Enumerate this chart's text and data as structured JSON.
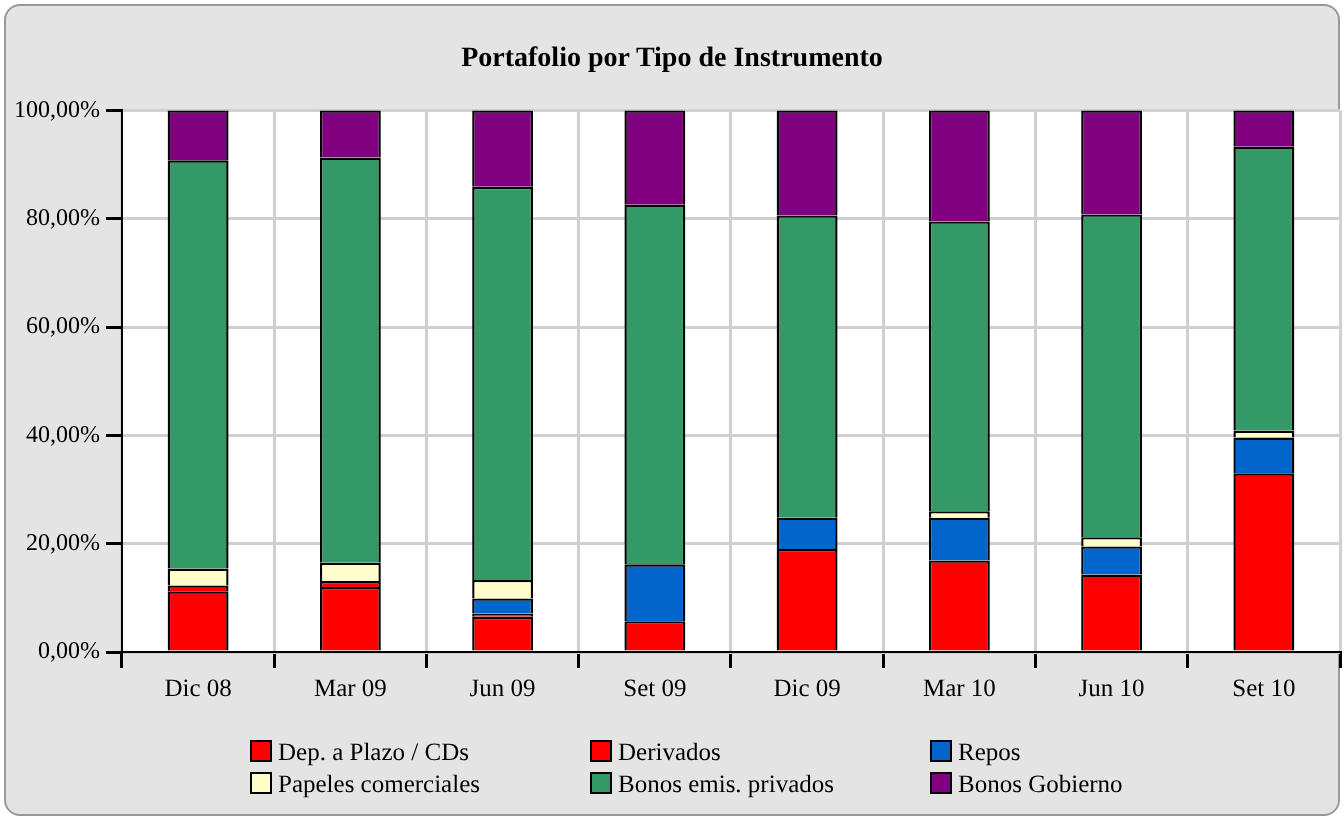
{
  "chart_data": {
    "type": "bar",
    "title": "Portafolio por Tipo de Instrumento",
    "stacked": true,
    "categories": [
      "Dic 08",
      "Mar 09",
      "Jun 09",
      "Set 09",
      "Dic 09",
      "Mar 10",
      "Jun 10",
      "Set 10"
    ],
    "series": [
      {
        "name": "Dep. a Plazo / CDs",
        "color": "#ff0000",
        "values": [
          11.2,
          12.0,
          6.5,
          5.7,
          19.0,
          16.9,
          14.3,
          33.0
        ]
      },
      {
        "name": "Derivados",
        "color": "#ff0000",
        "values": [
          1.1,
          1.1,
          0.6,
          0,
          0,
          0,
          0,
          0
        ]
      },
      {
        "name": "Repos",
        "color": "#0066cc",
        "values": [
          0,
          0,
          2.8,
          10.5,
          5.8,
          7.9,
          5.2,
          6.6
        ]
      },
      {
        "name": "Papeles comerciales",
        "color": "#ffffcc",
        "values": [
          3.1,
          3.4,
          3.4,
          0,
          0,
          1.2,
          1.7,
          1.3
        ]
      },
      {
        "name": "Bonos emis. privados",
        "color": "#339966",
        "values": [
          75.4,
          74.8,
          72.6,
          66.4,
          55.8,
          53.5,
          59.6,
          52.4
        ]
      },
      {
        "name": "Bonos Gobierno",
        "color": "#800080",
        "values": [
          9.2,
          8.7,
          14.1,
          17.4,
          19.4,
          20.5,
          19.2,
          6.7
        ]
      }
    ],
    "ylim": [
      0,
      100
    ],
    "yticks": [
      {
        "value": 0,
        "label": "0,00%"
      },
      {
        "value": 20,
        "label": "20,00%"
      },
      {
        "value": 40,
        "label": "40,00%"
      },
      {
        "value": 60,
        "label": "60,00%"
      },
      {
        "value": 80,
        "label": "80,00%"
      },
      {
        "value": 100,
        "label": "100,00%"
      }
    ],
    "grid": true,
    "legend": "bottom"
  }
}
